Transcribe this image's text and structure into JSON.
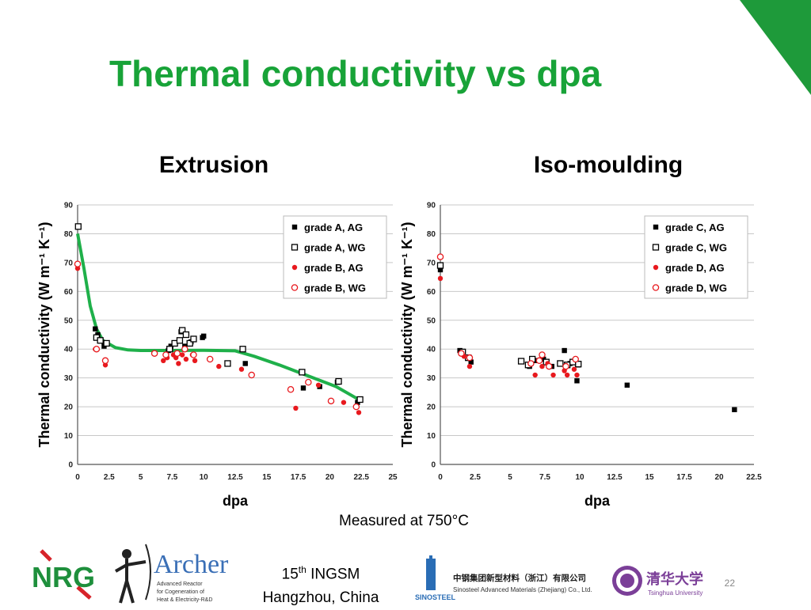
{
  "slide": {
    "title": "Thermal conductivity vs dpa",
    "caption": "Measured at 750°C",
    "conference_line1_num": "15",
    "conference_line1_sup": "th",
    "conference_line1_rest": " INGSM",
    "conference_line2": "Hangzhou, China",
    "page_number": "22",
    "colors": {
      "title": "#18a338",
      "corner": "#1e9a3a",
      "fit_line": "#1fb04a",
      "red_marker": "#e8191e"
    }
  },
  "logos": {
    "nrg": {
      "text": "NRG",
      "icon": "nrg-logo"
    },
    "archer": {
      "text": "Archer",
      "subtitle_1": "Advanced Reactor",
      "subtitle_2": "for Cogeneration of",
      "subtitle_3": "Heat & Electricity-R&D",
      "icon": "archer-figure"
    },
    "sinosteel": {
      "name_cn": "中钢集团新型材料（浙江）有限公司",
      "name_en": "Sinosteel Advanced Materials (Zhejiang) Co., Ltd.",
      "mark": "SINOSTEEL",
      "icon": "sinosteel-mark"
    },
    "tsinghua": {
      "name_cn": "清华大学",
      "name_en": "Tsinghua University",
      "icon": "tsinghua-seal"
    }
  },
  "chart_data": [
    {
      "type": "scatter",
      "title": "Extrusion",
      "xlabel": "dpa",
      "ylabel": "Thermal conductivity (W m⁻¹ K⁻¹)",
      "xlim": [
        0,
        25
      ],
      "ylim": [
        0,
        90
      ],
      "xticks": [
        "0",
        "2.5",
        "5",
        "7.5",
        "10",
        "12.5",
        "15",
        "17.5",
        "20",
        "22.5",
        "25"
      ],
      "yticks": [
        "0",
        "10",
        "20",
        "30",
        "40",
        "50",
        "60",
        "70",
        "80",
        "90"
      ],
      "grid": true,
      "legend_position": "top-right",
      "series": [
        {
          "name": "grade A, AG",
          "marker": "square-filled",
          "color": "#000000",
          "points": [
            [
              1.4,
              47
            ],
            [
              1.6,
              45
            ],
            [
              2.1,
              41
            ],
            [
              2.2,
              42
            ],
            [
              7.2,
              39.5
            ],
            [
              7.4,
              41
            ],
            [
              8.2,
              46
            ],
            [
              8.5,
              41
            ],
            [
              9.0,
              42.5
            ],
            [
              9.9,
              44
            ],
            [
              10.0,
              44.5
            ],
            [
              13.3,
              35
            ],
            [
              17.9,
              26.5
            ],
            [
              19.2,
              27
            ],
            [
              20.6,
              28.5
            ],
            [
              22.2,
              21.5
            ]
          ]
        },
        {
          "name": "grade A, WG",
          "marker": "square-open",
          "color": "#000000",
          "points": [
            [
              0.05,
              82.5
            ],
            [
              1.5,
              44
            ],
            [
              1.8,
              43
            ],
            [
              2.3,
              42
            ],
            [
              7.3,
              40
            ],
            [
              7.7,
              42
            ],
            [
              8.1,
              43
            ],
            [
              8.3,
              46.5
            ],
            [
              8.6,
              45
            ],
            [
              8.9,
              42
            ],
            [
              9.2,
              43.5
            ],
            [
              11.9,
              35
            ],
            [
              13.1,
              40
            ],
            [
              17.8,
              32
            ],
            [
              20.7,
              28.8
            ],
            [
              22.4,
              22.5
            ]
          ]
        },
        {
          "name": "grade B, AG",
          "marker": "circle-filled",
          "color": "#e8191e",
          "points": [
            [
              0,
              68
            ],
            [
              1.4,
              40
            ],
            [
              2.2,
              34.5
            ],
            [
              6.8,
              36
            ],
            [
              7.1,
              37
            ],
            [
              7.6,
              38
            ],
            [
              7.8,
              37
            ],
            [
              8.0,
              35
            ],
            [
              8.3,
              38
            ],
            [
              8.6,
              36.5
            ],
            [
              9.1,
              38
            ],
            [
              9.3,
              36
            ],
            [
              11.2,
              34
            ],
            [
              13.0,
              33
            ],
            [
              17.3,
              19.5
            ],
            [
              19.1,
              27.5
            ],
            [
              21.1,
              21.5
            ],
            [
              22.3,
              18
            ]
          ]
        },
        {
          "name": "grade B, WG",
          "marker": "circle-open",
          "color": "#e8191e",
          "points": [
            [
              0,
              69.5
            ],
            [
              1.5,
              40
            ],
            [
              2.2,
              36
            ],
            [
              6.1,
              38.5
            ],
            [
              7.0,
              38
            ],
            [
              7.9,
              38.5
            ],
            [
              8.5,
              40
            ],
            [
              9.2,
              38
            ],
            [
              10.5,
              36.5
            ],
            [
              13.8,
              31
            ],
            [
              16.9,
              26
            ],
            [
              18.3,
              28.5
            ],
            [
              20.1,
              22
            ],
            [
              22.1,
              20
            ]
          ]
        }
      ],
      "fit_line": {
        "color": "#1fb04a",
        "points": [
          [
            0,
            80
          ],
          [
            0.5,
            68
          ],
          [
            1,
            55
          ],
          [
            1.5,
            47
          ],
          [
            2,
            43
          ],
          [
            3,
            40.5
          ],
          [
            4,
            39.7
          ],
          [
            5,
            39.5
          ],
          [
            7.5,
            39.5
          ],
          [
            10,
            39.6
          ],
          [
            12.5,
            39.4
          ],
          [
            14,
            37.5
          ],
          [
            15,
            36
          ],
          [
            16,
            34.5
          ],
          [
            17.5,
            32
          ],
          [
            19,
            29.5
          ],
          [
            20.5,
            27
          ],
          [
            22.5,
            22
          ]
        ]
      }
    },
    {
      "type": "scatter",
      "title": "Iso-moulding",
      "xlabel": "dpa",
      "ylabel": "Thermal conductivity (W m⁻¹ K⁻¹)",
      "xlim": [
        0,
        22.5
      ],
      "ylim": [
        0,
        90
      ],
      "xticks": [
        "0",
        "2.5",
        "5",
        "7.5",
        "10",
        "12.5",
        "15",
        "17.5",
        "20",
        "22.5"
      ],
      "yticks": [
        "0",
        "10",
        "20",
        "30",
        "40",
        "50",
        "60",
        "70",
        "80",
        "90"
      ],
      "grid": true,
      "legend_position": "top-right",
      "series": [
        {
          "name": "grade C, AG",
          "marker": "square-filled",
          "color": "#000000",
          "points": [
            [
              0,
              67.5
            ],
            [
              1.4,
              39.5
            ],
            [
              2.2,
              35.5
            ],
            [
              6.4,
              34
            ],
            [
              6.9,
              36
            ],
            [
              7.4,
              36.5
            ],
            [
              8.0,
              34
            ],
            [
              8.9,
              39.5
            ],
            [
              9.3,
              35
            ],
            [
              9.8,
              29
            ],
            [
              9.9,
              34.5
            ],
            [
              13.4,
              27.5
            ],
            [
              21.1,
              19
            ]
          ]
        },
        {
          "name": "grade C, WG",
          "marker": "square-open",
          "color": "#000000",
          "points": [
            [
              0,
              69
            ],
            [
              1.6,
              39
            ],
            [
              2.0,
              37
            ],
            [
              5.8,
              35.8
            ],
            [
              6.3,
              34.5
            ],
            [
              6.6,
              36.5
            ],
            [
              7.6,
              35.5
            ],
            [
              8.6,
              35
            ],
            [
              9.1,
              34.5
            ],
            [
              9.5,
              35.5
            ],
            [
              9.9,
              34.8
            ]
          ]
        },
        {
          "name": "grade D, AG",
          "marker": "circle-filled",
          "color": "#e8191e",
          "points": [
            [
              0,
              64.5
            ],
            [
              1.7,
              37.5
            ],
            [
              2.1,
              34
            ],
            [
              6.8,
              31
            ],
            [
              7.3,
              34
            ],
            [
              7.7,
              35
            ],
            [
              8.1,
              31
            ],
            [
              8.9,
              32.5
            ],
            [
              9.1,
              31
            ],
            [
              9.6,
              33
            ],
            [
              9.8,
              31
            ]
          ]
        },
        {
          "name": "grade D, WG",
          "marker": "circle-open",
          "color": "#e8191e",
          "points": [
            [
              0,
              72
            ],
            [
              1.5,
              38.5
            ],
            [
              2.1,
              37
            ],
            [
              6.5,
              35
            ],
            [
              7.1,
              36
            ],
            [
              7.3,
              38
            ],
            [
              7.8,
              34
            ],
            [
              9.0,
              34
            ],
            [
              9.7,
              36.5
            ]
          ]
        }
      ]
    }
  ]
}
